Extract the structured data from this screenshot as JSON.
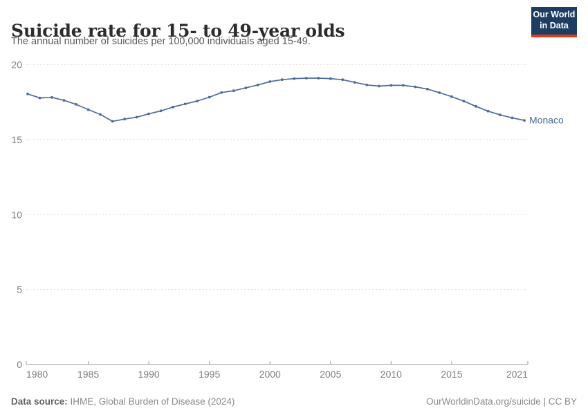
{
  "header": {
    "title": "Suicide rate for 15- to 49-year olds",
    "subtitle": "The annual number of suicides per 100,000 individuals aged 15-49.",
    "logo_line1": "Our World",
    "logo_line2": "in Data"
  },
  "chart_data": {
    "type": "line",
    "title": "Suicide rate for 15- to 49-year olds",
    "ylabel": "",
    "xlabel": "",
    "ylim": [
      0,
      20
    ],
    "yticks": [
      0,
      5,
      10,
      15,
      20
    ],
    "xtick_labels": [
      1980,
      1985,
      1990,
      1995,
      2000,
      2005,
      2010,
      2015,
      2021
    ],
    "grid": "horizontal-dashed",
    "legend_position": "end-of-line-label",
    "x": [
      1980,
      1981,
      1982,
      1983,
      1984,
      1985,
      1986,
      1987,
      1988,
      1989,
      1990,
      1991,
      1992,
      1993,
      1994,
      1995,
      1996,
      1997,
      1998,
      1999,
      2000,
      2001,
      2002,
      2003,
      2004,
      2005,
      2006,
      2007,
      2008,
      2009,
      2010,
      2011,
      2012,
      2013,
      2014,
      2015,
      2016,
      2017,
      2018,
      2019,
      2020,
      2021
    ],
    "series": [
      {
        "name": "Monaco",
        "color": "#4c6a9c",
        "values": [
          18.05,
          17.78,
          17.82,
          17.62,
          17.35,
          17.0,
          16.68,
          16.22,
          16.37,
          16.5,
          16.72,
          16.92,
          17.17,
          17.38,
          17.58,
          17.83,
          18.14,
          18.26,
          18.45,
          18.65,
          18.87,
          19.0,
          19.07,
          19.1,
          19.1,
          19.07,
          19.0,
          18.82,
          18.65,
          18.57,
          18.62,
          18.62,
          18.52,
          18.37,
          18.13,
          17.87,
          17.57,
          17.22,
          16.9,
          16.65,
          16.45,
          16.28
        ]
      }
    ]
  },
  "footer": {
    "datasource_label": "Data source:",
    "datasource_value": "IHME, Global Burden of Disease (2024)",
    "attribution": "OurWorldinData.org/suicide | CC BY"
  },
  "colors": {
    "line": "#4c6a9c",
    "grid": "#dedede",
    "axis": "#9e9e9e",
    "tick_label": "#7e7e7e",
    "logo_bg": "#1d3d63",
    "logo_red": "#e63912",
    "title_text": "#2c2c2c",
    "subtitle_text": "#5a5a5a"
  }
}
